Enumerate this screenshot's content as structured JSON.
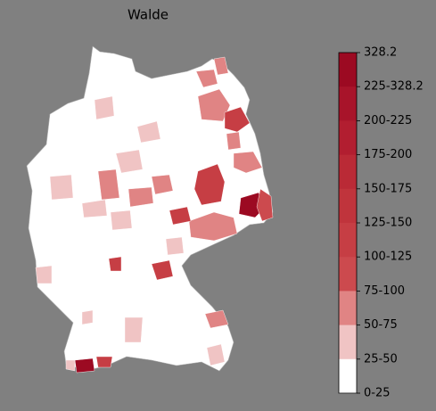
{
  "title": "Walde",
  "legend": {
    "labels": [
      "328.2",
      "225-328.2",
      "200-225",
      "175-200",
      "150-175",
      "125-150",
      "100-125",
      "75-100",
      "50-75",
      "25-50",
      "0-25"
    ],
    "colors": [
      "#9c0a22",
      "#a8142a",
      "#b21e30",
      "#ba2a36",
      "#c0343c",
      "#c63e44",
      "#cc4a4e",
      "#e08484",
      "#f0c4c4",
      "#ffffff"
    ]
  }
}
